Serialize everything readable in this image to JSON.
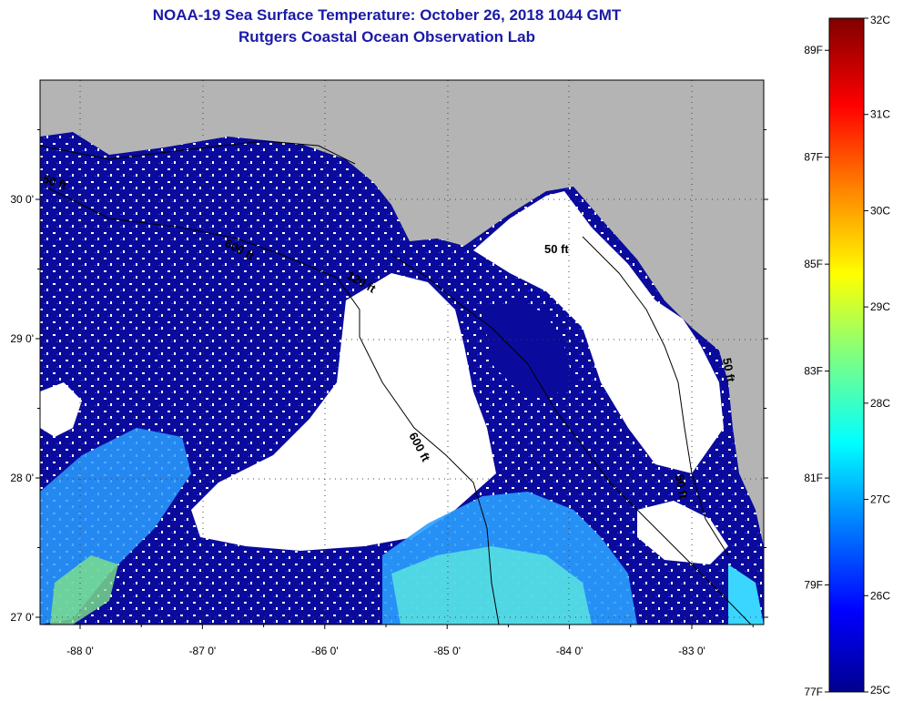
{
  "title": "NOAA-19 Sea Surface Temperature:  October 26, 2018 1044 GMT",
  "subtitle": "Rutgers Coastal Ocean Observation Lab",
  "lat_ticks": [
    {
      "value": 30,
      "label": "30 0'"
    },
    {
      "value": 29,
      "label": "29 0'"
    },
    {
      "value": 28,
      "label": "28 0'"
    },
    {
      "value": 27,
      "label": "27 0'"
    }
  ],
  "lon_ticks": [
    {
      "value": -88,
      "label": "-88 0'"
    },
    {
      "value": -87,
      "label": "-87 0'"
    },
    {
      "value": -86,
      "label": "-86 0'"
    },
    {
      "value": -85,
      "label": "-85 0'"
    },
    {
      "value": -84,
      "label": "-84 0'"
    },
    {
      "value": -83,
      "label": "-83 0'"
    }
  ],
  "contour_labels": [
    "50 ft",
    "600 ft",
    "120 ft",
    "50 ft",
    "600 ft",
    "50 ft",
    "50 ft"
  ],
  "colorbar": {
    "celsius_labels": [
      "32C",
      "31C",
      "30C",
      "29C",
      "28C",
      "27C",
      "26C",
      "25C"
    ],
    "fahrenheit_labels": [
      "89F",
      "87F",
      "85F",
      "83F",
      "81F",
      "79F",
      "77F"
    ],
    "colors": [
      "#00008f",
      "#0000ff",
      "#0080ff",
      "#00ffff",
      "#80ff80",
      "#ffff00",
      "#ff8000",
      "#ff0000",
      "#800000"
    ]
  },
  "colors": {
    "land": "#b4b4b4",
    "ocean_cool": "#0a0a9c",
    "no_data": "#ffffff",
    "title": "#1a1aa8"
  }
}
